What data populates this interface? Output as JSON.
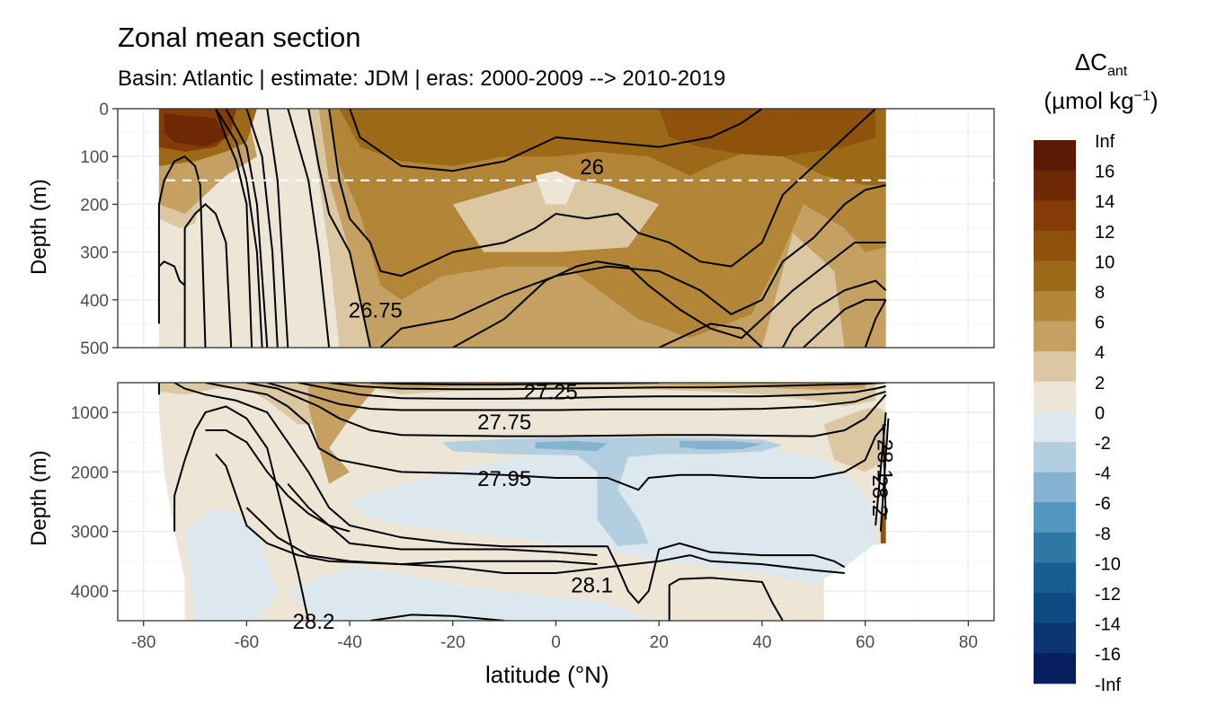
{
  "chart_data": {
    "type": "contour",
    "title": "Zonal mean section",
    "subtitle": "Basin: Atlantic | estimate: JDM  | eras: 2000-2009 --> 2010-2019",
    "xlabel": "latitude (°N)",
    "ylabel": "Depth (m)",
    "x_ticks": [
      -80,
      -60,
      -40,
      -20,
      0,
      20,
      40,
      60,
      80
    ],
    "xlim": [
      -85,
      85
    ],
    "panels": [
      {
        "name": "upper",
        "ylim": [
          0,
          500
        ],
        "y_ticks": [
          0,
          100,
          200,
          300,
          400,
          500
        ]
      },
      {
        "name": "lower",
        "ylim": [
          500,
          4500
        ],
        "y_ticks": [
          1000,
          2000,
          3000,
          4000
        ]
      }
    ],
    "reference_depth": 150,
    "legend": {
      "title_main": "ΔC",
      "title_sub": "ant",
      "title_unit": "(µmol kg",
      "title_sup": "−1",
      "title_close": ")",
      "bins": [
        {
          "label": "Inf",
          "color": "#5a1a06"
        },
        {
          "label": "16",
          "color": "#6f2806"
        },
        {
          "label": "14",
          "color": "#833b08"
        },
        {
          "label": "12",
          "color": "#8f520c"
        },
        {
          "label": "10",
          "color": "#9c6a17"
        },
        {
          "label": "8",
          "color": "#b38536"
        },
        {
          "label": "6",
          "color": "#c4a062"
        },
        {
          "label": "4",
          "color": "#dbc8a2"
        },
        {
          "label": "2",
          "color": "#ede5d6"
        },
        {
          "label": "0",
          "color": "#dce7ee"
        },
        {
          "label": "-2",
          "color": "#b3cede"
        },
        {
          "label": "-4",
          "color": "#85b3cf"
        },
        {
          "label": "-6",
          "color": "#5496bd"
        },
        {
          "label": "-8",
          "color": "#2e78a6"
        },
        {
          "label": "-10",
          "color": "#175f92"
        },
        {
          "label": "-12",
          "color": "#0e4981"
        },
        {
          "label": "-14",
          "color": "#0b3470"
        },
        {
          "label": "-16",
          "color": "#071f5e"
        },
        {
          "label": "-Inf",
          "color": "#02104e"
        }
      ]
    },
    "contour_labels": [
      {
        "text": "26",
        "lat": 7,
        "depth": 120
      },
      {
        "text": "26.75",
        "lat": -35,
        "depth": 420
      },
      {
        "text": "27.25",
        "lat": -1,
        "depth": 640
      },
      {
        "text": "27.75",
        "lat": -10,
        "depth": 1150
      },
      {
        "text": "27.95",
        "lat": -10,
        "depth": 2100
      },
      {
        "text": "28.1",
        "lat": 7,
        "depth": 3890
      },
      {
        "text": "28.2",
        "lat": -47,
        "depth": 4500
      },
      {
        "text": "28.2",
        "lat": 63,
        "depth": 2400
      },
      {
        "text": "28.1",
        "lat": 64,
        "depth": 1800
      }
    ]
  }
}
